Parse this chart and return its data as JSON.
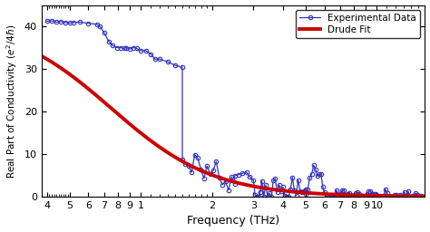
{
  "xlabel": "Frequency (THz)",
  "ylabel": "Real Part of Conductivity ($e^2/4\\hbar$)",
  "ylim": [
    0,
    45
  ],
  "yticks": [
    0,
    10,
    20,
    30,
    40
  ],
  "drude_sigma0": 41.5,
  "drude_gamma": 0.75,
  "exp_color": "#3333bb",
  "fit_color": "#cc0000",
  "legend_exp": "Experimental Data",
  "legend_fit": "Drude Fit",
  "xmin": 0.38,
  "xmax": 16.0
}
